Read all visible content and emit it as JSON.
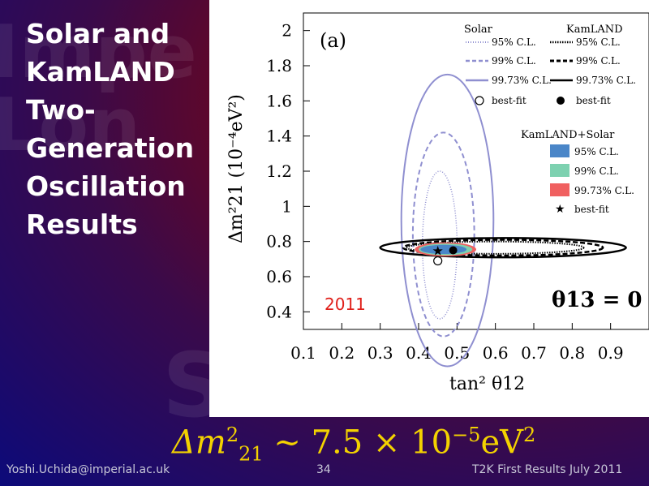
{
  "slide": {
    "title_lines": [
      "Solar and",
      "KamLAND",
      "Two-",
      "Generation",
      "Oscillation",
      "Results"
    ],
    "formula_main": "Δm",
    "formula_sup": "2",
    "formula_sub": "21",
    "formula_rest": "∼ 7.5 × 10",
    "formula_exp": "−5",
    "formula_unit": "eV",
    "formula_unit_exp": "2",
    "footer_left": "Yoshi.Uchida@imperial.ac.uk",
    "footer_center": "34",
    "footer_right": "T2K First Results July 2011"
  },
  "chart_data": {
    "type": "contour",
    "panel_label": "(a)",
    "year_label": "2011",
    "theta_label": "θ13 = 0",
    "xlabel": "tan² θ12",
    "ylabel": "Δm²21 (10⁻⁴eV²)",
    "xlim": [
      0.1,
      1.0
    ],
    "ylim": [
      0.3,
      2.1
    ],
    "xticks": [
      "0.1",
      "0.2",
      "0.3",
      "0.4",
      "0.5",
      "0.6",
      "0.7",
      "0.8",
      "0.9"
    ],
    "yticks": [
      "2",
      "1.8",
      "1.6",
      "1.4",
      "1.2",
      "1",
      "0.8",
      "0.6",
      "0.4"
    ],
    "legend": {
      "solar_header": "Solar",
      "kamland_header": "KamLAND",
      "combined_header": "KamLAND+Solar",
      "rows": [
        "95% C.L.",
        "99% C.L.",
        "99.73% C.L.",
        "best-fit"
      ],
      "combined_rows": [
        "95% C.L.",
        "99% C.L.",
        "99.73% C.L.",
        "best-fit"
      ]
    },
    "colors": {
      "solar": "#8f8fd0",
      "cl95": "#4a86c8",
      "cl99": "#7dd1b0",
      "cl9973": "#f06060",
      "year": "#e0201a"
    },
    "best_fit": {
      "solar": [
        0.45,
        0.69
      ],
      "kamland": [
        0.49,
        0.75
      ],
      "combined": [
        0.45,
        0.75
      ]
    },
    "solar_contours": [
      {
        "cl": "95%",
        "cx": 0.455,
        "cy": 0.78,
        "rx": 0.045,
        "ry": 0.42
      },
      {
        "cl": "99%",
        "cx": 0.465,
        "cy": 0.84,
        "rx": 0.08,
        "ry": 0.58
      },
      {
        "cl": "99.73%",
        "cx": 0.475,
        "cy": 0.92,
        "rx": 0.12,
        "ry": 0.83
      }
    ],
    "kamland_contours": [
      {
        "cl": "95%",
        "cx": 0.6,
        "cy": 0.765,
        "rx": 0.23,
        "ry": 0.035
      },
      {
        "cl": "99%",
        "cx": 0.62,
        "cy": 0.765,
        "rx": 0.26,
        "ry": 0.045
      },
      {
        "cl": "99.73%",
        "cx": 0.62,
        "cy": 0.765,
        "rx": 0.32,
        "ry": 0.055
      }
    ],
    "combined_contours": [
      {
        "cl": "99.73%",
        "cx": 0.47,
        "cy": 0.755,
        "rx": 0.08,
        "ry": 0.04
      },
      {
        "cl": "99%",
        "cx": 0.47,
        "cy": 0.755,
        "rx": 0.07,
        "ry": 0.033
      },
      {
        "cl": "95%",
        "cx": 0.465,
        "cy": 0.755,
        "rx": 0.06,
        "ry": 0.026
      }
    ]
  }
}
